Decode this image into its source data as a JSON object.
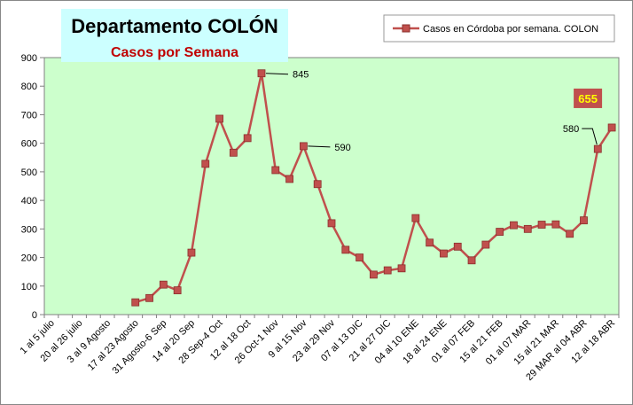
{
  "colors": {
    "plot_bg": "#ccffcc",
    "series": "#c0504d",
    "title_box": "#ccffff",
    "highlight_box": "#c0504d",
    "highlight_text": "#ffff00"
  },
  "chart_data": {
    "type": "line",
    "title": "Departamento COLÓN",
    "subtitle": "Casos por Semana",
    "xlabel": "",
    "ylabel": "",
    "ylim": [
      0,
      900
    ],
    "yticks": [
      0,
      100,
      200,
      300,
      400,
      500,
      600,
      700,
      800,
      900
    ],
    "grid": false,
    "legend_position": "top-right",
    "categories": [
      "1 al 5 julio",
      "",
      "20 al 26 julio",
      "",
      "3 al 9 Agosto",
      "",
      "17 al 23 Agosto",
      "",
      "31 Agosto-6 Sep",
      "",
      "14 al 20 Sep",
      "",
      "28 Sep-4 Oct",
      "",
      "12 al 18 Oct",
      "",
      "26 Oct-1 Nov",
      "",
      "9 al 15 Nov",
      "",
      "23 al 29 Nov",
      "",
      "07 al 13 DIC",
      "",
      "21 al 27 DIC",
      "",
      "04 al 10 ENE",
      "",
      "18 al 24 ENE",
      "",
      "01 al 07 FEB",
      "",
      "15 al 21 FEB",
      "",
      "01 al 07 MAR",
      "",
      "15 al 21 MAR",
      "",
      "29 MAR al 04 ABR",
      "",
      "12 al 18 ABR"
    ],
    "series": [
      {
        "name": "Casos en Córdoba por semana. COLON",
        "values": [
          null,
          null,
          null,
          null,
          null,
          null,
          43,
          58,
          105,
          85,
          217,
          528,
          686,
          567,
          618,
          845,
          506,
          475,
          590,
          457,
          320,
          227,
          200,
          140,
          155,
          162,
          338,
          252,
          214,
          238,
          190,
          245,
          290,
          313,
          300,
          315,
          316,
          283,
          330,
          580,
          655
        ]
      }
    ],
    "annotations": [
      {
        "index": 15,
        "text": "845"
      },
      {
        "index": 18,
        "text": "590"
      },
      {
        "index": 39,
        "text": "580"
      },
      {
        "index": 40,
        "text": "655",
        "highlight": true
      }
    ]
  }
}
